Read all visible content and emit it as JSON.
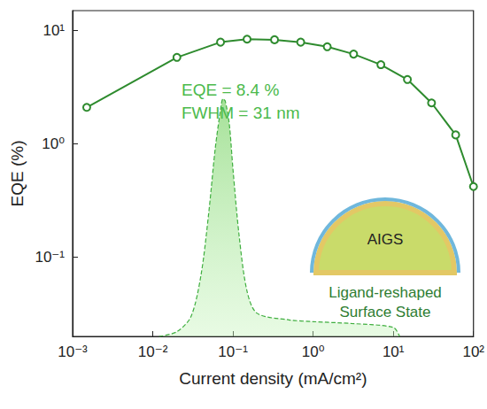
{
  "chart_data": {
    "type": "line",
    "x_label": "Current density (mA/cm²)",
    "y_label": "EQE (%)",
    "log": true,
    "grid": false,
    "xlim": [
      0.001,
      100
    ],
    "xticks": [
      {
        "value": 0.001,
        "label": "10⁻³"
      },
      {
        "value": 0.01,
        "label": "10⁻²"
      },
      {
        "value": 0.1,
        "label": "10⁻¹"
      },
      {
        "value": 1,
        "label": "10⁰"
      },
      {
        "value": 10,
        "label": "10¹"
      },
      {
        "value": 100,
        "label": "10²"
      }
    ],
    "ylim": [
      0.02,
      15
    ],
    "yticks": [
      {
        "value": 0.1,
        "label": "10⁻¹"
      },
      {
        "value": 1,
        "label": "10⁰"
      },
      {
        "value": 10,
        "label": "10¹"
      }
    ],
    "series": [
      {
        "type": "line",
        "color": "#2e8b2e",
        "marker": "open_circle",
        "line_style": "solid",
        "x": [
          0.0015,
          0.02,
          0.07,
          0.15,
          0.33,
          0.7,
          1.5,
          3.2,
          7,
          15,
          30,
          60,
          100
        ],
        "values": [
          2.1,
          5.8,
          7.9,
          8.4,
          8.3,
          7.9,
          7.2,
          6.2,
          5.0,
          3.7,
          2.3,
          1.2,
          0.42
        ]
      },
      {
        "type": "area",
        "color": "#3fae3f",
        "marker": "none",
        "line_style": "dashed",
        "x": [
          0.012,
          0.02,
          0.03,
          0.04,
          0.05,
          0.06,
          0.07,
          0.075,
          0.08,
          0.09,
          0.1,
          0.12,
          0.15,
          0.2,
          0.5,
          1,
          3,
          10,
          12
        ],
        "values": [
          0.02,
          0.022,
          0.03,
          0.07,
          0.25,
          0.9,
          2.0,
          2.5,
          2.4,
          1.5,
          0.6,
          0.15,
          0.05,
          0.032,
          0.028,
          0.027,
          0.026,
          0.024,
          0.02
        ]
      }
    ],
    "annotations": [
      "EQE = 8.4 %",
      "FWHM = 31 nm",
      "AIGS",
      "Ligand-reshaped",
      "Surface State"
    ]
  }
}
